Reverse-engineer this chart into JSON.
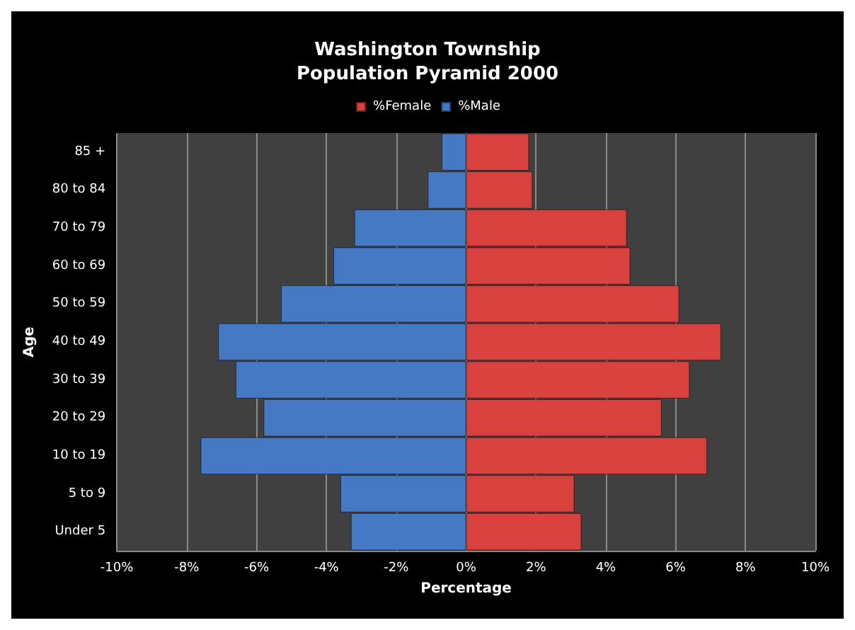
{
  "chart_data": {
    "type": "bar",
    "orientation": "horizontal",
    "title": "Washington Township\nPopulation Pyramid 2000",
    "xlabel": "Percentage",
    "ylabel": "Age",
    "categories": [
      "85 +",
      "80 to 84",
      "70 to 79",
      "60 to 69",
      "50 to 59",
      "40 to 49",
      "30 to 39",
      "20 to 29",
      "10 to 19",
      "5 to 9",
      "Under 5"
    ],
    "series": [
      {
        "name": "%Female",
        "color": "#d9413f",
        "values": [
          1.8,
          1.9,
          4.6,
          4.7,
          6.1,
          7.3,
          6.4,
          5.6,
          6.9,
          3.1,
          3.3
        ]
      },
      {
        "name": "%Male",
        "color": "#4679c4",
        "values": [
          -0.7,
          -1.1,
          -3.2,
          -3.8,
          -5.3,
          -7.1,
          -6.6,
          -5.8,
          -7.6,
          -3.6,
          -3.3
        ]
      }
    ],
    "xlim": [
      -10,
      10
    ],
    "xticks": [
      {
        "value": -10,
        "label": "-10%"
      },
      {
        "value": -8,
        "label": "-8%"
      },
      {
        "value": -6,
        "label": "-6%"
      },
      {
        "value": -4,
        "label": "-4%"
      },
      {
        "value": -2,
        "label": "-2%"
      },
      {
        "value": 0,
        "label": "0%"
      },
      {
        "value": 2,
        "label": "2%"
      },
      {
        "value": 4,
        "label": "4%"
      },
      {
        "value": 6,
        "label": "6%"
      },
      {
        "value": 8,
        "label": "8%"
      },
      {
        "value": 10,
        "label": "10%"
      }
    ],
    "grid": "x",
    "legend": "top",
    "stacked": true
  }
}
